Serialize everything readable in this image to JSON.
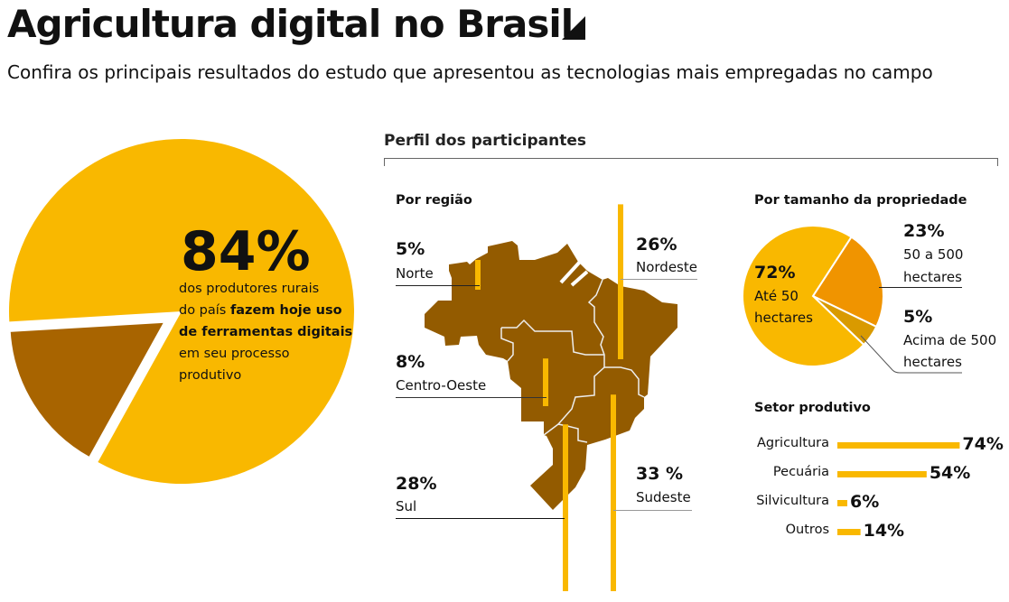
{
  "header": {
    "title": "Agricultura digital no Brasil",
    "subtitle": "Confira os principais resultados do estudo que apresentou as tecnologias mais empregadas no campo"
  },
  "colors": {
    "yellow": "#f9b800",
    "brown": "#a86400",
    "map": "#935b00",
    "orange": "#f09400",
    "dark_yellow": "#d99a00"
  },
  "chart_data": [
    {
      "type": "pie",
      "name": "uso-ferramentas-digitais",
      "values": [
        84,
        16
      ],
      "highlight": "84%",
      "description": {
        "line1": "dos produtores rurais",
        "line2a": "do país ",
        "line2b": "fazem hoje uso",
        "line3": "de ferramentas digitais",
        "line4": "em seu processo",
        "line5": "produtivo"
      }
    },
    {
      "type": "bar",
      "title": "Perfil dos participantes",
      "subtitle": "Por região",
      "categories": [
        "Norte",
        "Nordeste",
        "Centro-Oeste",
        "Sul",
        "Sudeste"
      ],
      "values": [
        5,
        26,
        8,
        28,
        33
      ],
      "labels": [
        "5%",
        "26%",
        "8%",
        "28%",
        "33 %"
      ]
    },
    {
      "type": "pie",
      "title": "Por tamanho da propriedade",
      "categories": [
        "Até 50 hectares",
        "50 a 500 hectares",
        "Acima de 500 hectares"
      ],
      "values": [
        72,
        23,
        5
      ],
      "labels": [
        "72%",
        "23%",
        "5%"
      ],
      "label_lines": [
        [
          "Até 50",
          "hectares"
        ],
        [
          "50 a 500",
          "hectares"
        ],
        [
          "Acima de 500",
          "hectares"
        ]
      ]
    },
    {
      "type": "bar",
      "title": "Setor produtivo",
      "categories": [
        "Agricultura",
        "Pecuária",
        "Silvicultura",
        "Outros"
      ],
      "values": [
        74,
        54,
        6,
        14
      ],
      "labels": [
        "74%",
        "54%",
        "6%",
        "14%"
      ]
    }
  ]
}
